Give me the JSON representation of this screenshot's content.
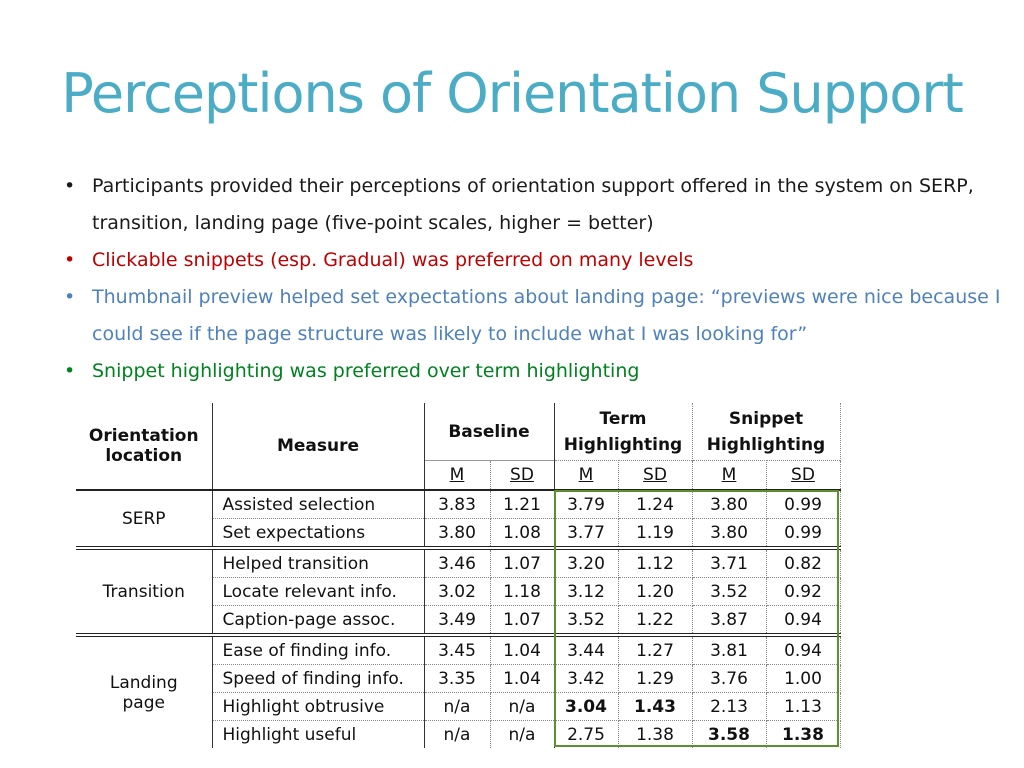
{
  "slide": {
    "title": "Perceptions of Orientation Support",
    "bullets": [
      {
        "text": "Participants provided their perceptions of orientation support offered in the system on SERP, transition, landing page (five-point scales, higher = better)",
        "color": "#1a1a1a"
      },
      {
        "text": "Clickable snippets (esp. Gradual) was preferred on many levels",
        "color": "#c00000"
      },
      {
        "text": "Thumbnail preview helped set expectations about landing page: “previews were nice because I could see if the page structure was likely to include what I was looking for”",
        "color": "#4f81bd"
      },
      {
        "text": "Snippet highlighting was preferred over term highlighting",
        "color": "#00821f"
      }
    ]
  },
  "table": {
    "headers": {
      "location": "Orientation location",
      "measure": "Measure",
      "baseline": "Baseline",
      "term": "Term Highlighting",
      "snippet": "Snippet Highlighting",
      "m": "M",
      "sd": "SD"
    },
    "groups": [
      {
        "location": "SERP",
        "rows": [
          {
            "measure": "Assisted selection",
            "b_m": "3.83",
            "b_sd": "1.21",
            "t_m": "3.79",
            "t_sd": "1.24",
            "s_m": "3.80",
            "s_sd": "0.99"
          },
          {
            "measure": "Set expectations",
            "b_m": "3.80",
            "b_sd": "1.08",
            "t_m": "3.77",
            "t_sd": "1.19",
            "s_m": "3.80",
            "s_sd": "0.99"
          }
        ]
      },
      {
        "location": "Transition",
        "rows": [
          {
            "measure": "Helped transition",
            "b_m": "3.46",
            "b_sd": "1.07",
            "t_m": "3.20",
            "t_sd": "1.12",
            "s_m": "3.71",
            "s_sd": "0.82"
          },
          {
            "measure": "Locate relevant info.",
            "b_m": "3.02",
            "b_sd": "1.18",
            "t_m": "3.12",
            "t_sd": "1.20",
            "s_m": "3.52",
            "s_sd": "0.92"
          },
          {
            "measure": "Caption-page assoc.",
            "b_m": "3.49",
            "b_sd": "1.07",
            "t_m": "3.52",
            "t_sd": "1.22",
            "s_m": "3.87",
            "s_sd": "0.94"
          }
        ]
      },
      {
        "location": "Landing page",
        "rows": [
          {
            "measure": "Ease of finding info.",
            "b_m": "3.45",
            "b_sd": "1.04",
            "t_m": "3.44",
            "t_sd": "1.27",
            "s_m": "3.81",
            "s_sd": "0.94"
          },
          {
            "measure": "Speed of finding info.",
            "b_m": "3.35",
            "b_sd": "1.04",
            "t_m": "3.42",
            "t_sd": "1.29",
            "s_m": "3.76",
            "s_sd": "1.00"
          },
          {
            "measure": "Highlight obtrusive",
            "b_m": "n/a",
            "b_sd": "n/a",
            "t_m": "3.04",
            "t_sd": "1.43",
            "s_m": "2.13",
            "s_sd": "1.13",
            "bold": [
              "t_m",
              "t_sd"
            ]
          },
          {
            "measure": "Highlight useful",
            "b_m": "n/a",
            "b_sd": "n/a",
            "t_m": "2.75",
            "t_sd": "1.38",
            "s_m": "3.58",
            "s_sd": "1.38",
            "bold": [
              "s_m",
              "s_sd"
            ]
          }
        ]
      }
    ],
    "highlight_color": "#5b8f2f"
  }
}
